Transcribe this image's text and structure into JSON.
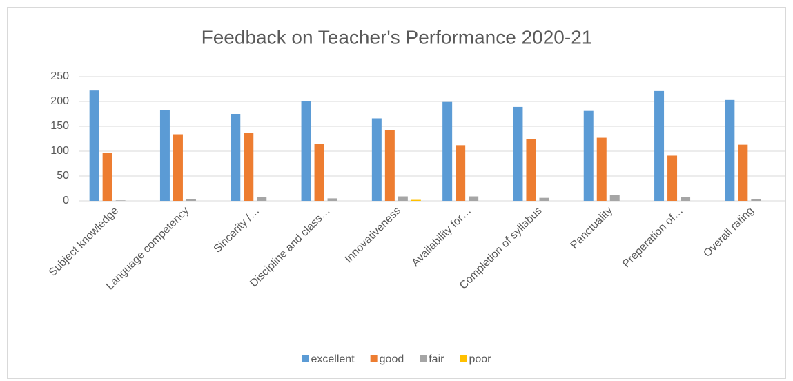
{
  "chart_data": {
    "type": "bar",
    "title": "Feedback on Teacher's Performance 2020-21",
    "categories": [
      "Subject knowledge",
      "Language competency",
      "Sincerity /…",
      "Discipline and class…",
      "Innovativeness",
      "Availability for…",
      "Completion of syllabus",
      "Panctuality",
      "Preperation of…",
      "Overall rating"
    ],
    "series": [
      {
        "name": "excellent",
        "color": "#5b9bd5",
        "values": [
          222,
          182,
          175,
          201,
          166,
          199,
          189,
          181,
          221,
          203
        ]
      },
      {
        "name": "good",
        "color": "#ed7d31",
        "values": [
          97,
          134,
          137,
          114,
          142,
          112,
          124,
          127,
          91,
          113
        ]
      },
      {
        "name": "fair",
        "color": "#a5a5a5",
        "values": [
          1,
          4,
          8,
          5,
          9,
          9,
          6,
          12,
          8,
          4
        ]
      },
      {
        "name": "poor",
        "color": "#ffc000",
        "values": [
          0,
          0,
          0,
          0,
          2,
          0,
          0,
          0,
          0,
          0
        ]
      }
    ],
    "ylim": [
      0,
      250
    ],
    "yticks": [
      0,
      50,
      100,
      150,
      200,
      250
    ],
    "grid": true,
    "legend": "bottom"
  }
}
